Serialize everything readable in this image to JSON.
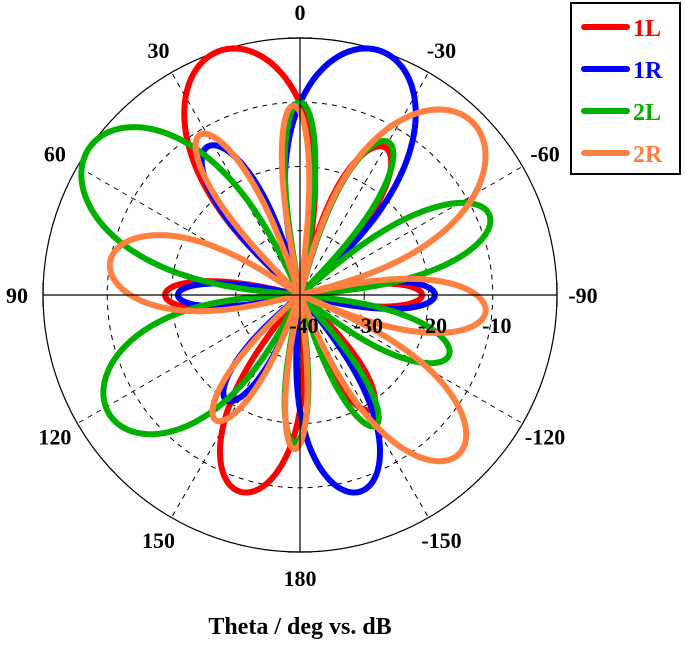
{
  "chart_data": {
    "type": "polar-line",
    "title": "",
    "xlabel": "Theta / deg vs. dB",
    "angle_convention": "0 at top, positive counterclockwise",
    "angle_ticks": [
      0,
      30,
      60,
      90,
      120,
      150,
      180,
      -150,
      -120,
      -90,
      -60,
      -30
    ],
    "angle_tick_labels": [
      "0",
      "30",
      "60",
      "90",
      "120",
      "150",
      "180",
      "-150",
      "-120",
      "-90",
      "-60",
      "-30"
    ],
    "radial_range_db": [
      -40,
      0
    ],
    "radial_ticks": [
      -40,
      -30,
      -20,
      -10,
      0
    ],
    "radial_tick_labels": [
      "-40",
      "-30",
      "-20",
      "-10"
    ],
    "grid": true,
    "legend_position": "upper right",
    "series": [
      {
        "name": "1L",
        "color": "#ff0000",
        "lobes": [
          {
            "angle": 18,
            "peak_db": 0,
            "width": 30
          },
          {
            "angle": 90,
            "peak_db": -19,
            "width": 13
          },
          {
            "angle": 163,
            "peak_db": -8,
            "width": 22
          },
          {
            "angle": -30,
            "peak_db": -13.5,
            "width": 16
          },
          {
            "angle": -90,
            "peak_db": -21,
            "width": 12
          },
          {
            "angle": -148,
            "peak_db": -19,
            "width": 14
          }
        ]
      },
      {
        "name": "1R",
        "color": "#0000ff",
        "lobes": [
          {
            "angle": -18,
            "peak_db": 0,
            "width": 30
          },
          {
            "angle": 32,
            "peak_db": -12.8,
            "width": 16
          },
          {
            "angle": 90,
            "peak_db": -21,
            "width": 12
          },
          {
            "angle": 145,
            "peak_db": -20,
            "width": 14
          },
          {
            "angle": -90,
            "peak_db": -19,
            "width": 13
          },
          {
            "angle": -163,
            "peak_db": -8,
            "width": 22
          }
        ]
      },
      {
        "name": "2L",
        "color": "#00b000",
        "lobes": [
          {
            "angle": 0,
            "peak_db": -10,
            "width": 10
          },
          {
            "angle": 55,
            "peak_db": 0,
            "width": 30
          },
          {
            "angle": 122,
            "peak_db": -5,
            "width": 30
          },
          {
            "angle": -30,
            "peak_db": -12.5,
            "width": 14
          },
          {
            "angle": -67,
            "peak_db": -8,
            "width": 18
          },
          {
            "angle": -112,
            "peak_db": -15,
            "width": 16
          },
          {
            "angle": -150,
            "peak_db": -16.5,
            "width": 12
          },
          {
            "angle": 178,
            "peak_db": -17,
            "width": 10
          }
        ]
      },
      {
        "name": "2R",
        "color": "#ff8040",
        "lobes": [
          {
            "angle": 2,
            "peak_db": -10.5,
            "width": 9
          },
          {
            "angle": 32,
            "peak_db": -10.6,
            "width": 13
          },
          {
            "angle": 80,
            "peak_db": -10,
            "width": 24
          },
          {
            "angle": 146,
            "peak_db": -16.5,
            "width": 13
          },
          {
            "angle": 178,
            "peak_db": -16,
            "width": 9
          },
          {
            "angle": -45,
            "peak_db": -2,
            "width": 30
          },
          {
            "angle": -95,
            "peak_db": -11,
            "width": 18
          },
          {
            "angle": -135,
            "peak_db": -5,
            "width": 22
          }
        ]
      }
    ]
  },
  "legend": {
    "items": [
      {
        "label": "1L",
        "color": "#ff0000"
      },
      {
        "label": "1R",
        "color": "#0000ff"
      },
      {
        "label": "2L",
        "color": "#00b000"
      },
      {
        "label": "2R",
        "color": "#ff8040"
      }
    ]
  },
  "axis": {
    "xlabel": "Theta / deg vs. dB"
  }
}
